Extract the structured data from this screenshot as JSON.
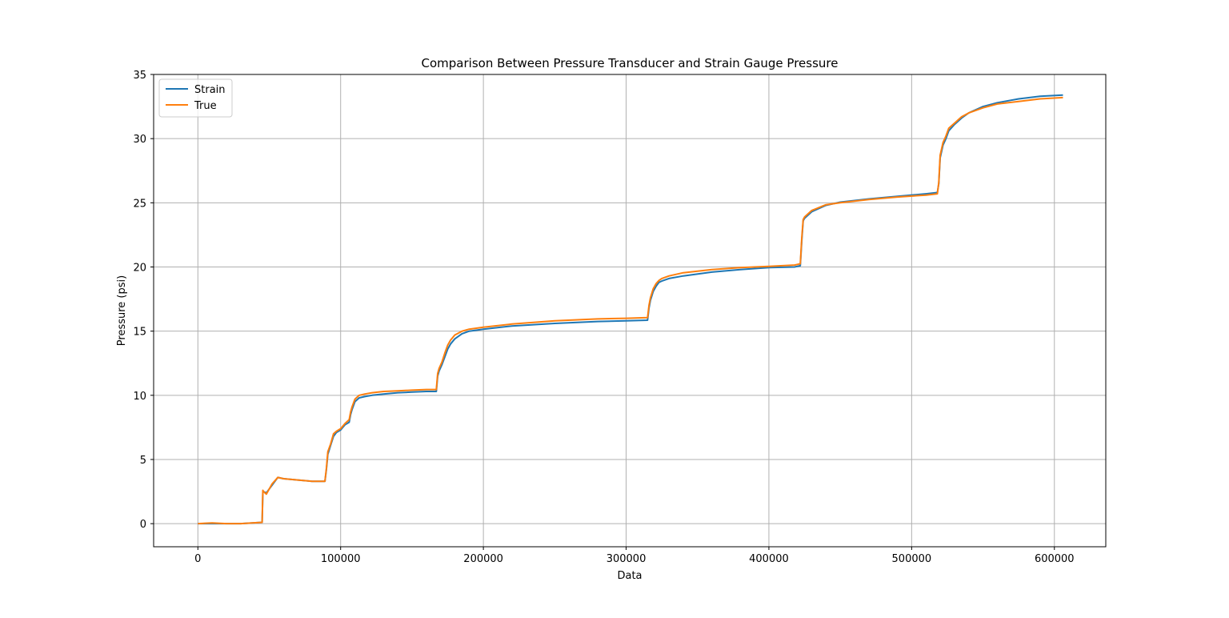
{
  "chart_data": {
    "type": "line",
    "title": "Comparison Between Pressure Transducer and Strain Gauge Pressure",
    "xlabel": "Data",
    "ylabel": "Pressure (psi)",
    "xlim": [
      -31000,
      636000
    ],
    "ylim": [
      -1.8,
      35
    ],
    "xticks": [
      0,
      100000,
      200000,
      300000,
      400000,
      500000,
      600000
    ],
    "xtick_labels": [
      "0",
      "100000",
      "200000",
      "300000",
      "400000",
      "500000",
      "600000"
    ],
    "yticks": [
      0,
      5,
      10,
      15,
      20,
      25,
      30,
      35
    ],
    "ytick_labels": [
      "0",
      "5",
      "10",
      "15",
      "20",
      "25",
      "30",
      "35"
    ],
    "grid": true,
    "legend_position": "top-left",
    "series": [
      {
        "name": "Strain",
        "color": "#1f77b4",
        "x": [
          0,
          10000,
          20000,
          30000,
          45000,
          45500,
          46000,
          48000,
          52000,
          56000,
          60000,
          70000,
          80000,
          89000,
          90000,
          91000,
          93000,
          95000,
          97000,
          100000,
          103000,
          106000,
          107000,
          108000,
          110000,
          113000,
          117000,
          122000,
          130000,
          140000,
          150000,
          160000,
          167000,
          168000,
          169000,
          171000,
          173000,
          175000,
          177000,
          180000,
          185000,
          190000,
          200000,
          220000,
          250000,
          280000,
          300000,
          315000,
          316000,
          317000,
          319000,
          321000,
          323000,
          325000,
          330000,
          340000,
          360000,
          380000,
          400000,
          418000,
          420000,
          422000,
          423000,
          424000,
          425000,
          430000,
          440000,
          450000,
          470000,
          490000,
          510000,
          518000,
          519000,
          520000,
          522000,
          524000,
          526000,
          530000,
          535000,
          540000,
          550000,
          560000,
          575000,
          590000,
          606000
        ],
        "y": [
          0.0,
          0.0,
          0.0,
          0.0,
          0.1,
          2.4,
          2.5,
          2.4,
          3.0,
          3.6,
          3.5,
          3.4,
          3.3,
          3.3,
          4.2,
          5.4,
          6.1,
          6.8,
          7.1,
          7.3,
          7.7,
          7.9,
          8.5,
          8.9,
          9.5,
          9.8,
          9.9,
          10.0,
          10.1,
          10.2,
          10.25,
          10.3,
          10.3,
          11.5,
          11.9,
          12.4,
          13.0,
          13.6,
          14.0,
          14.4,
          14.8,
          15.0,
          15.15,
          15.4,
          15.6,
          15.75,
          15.8,
          15.85,
          16.8,
          17.4,
          18.1,
          18.5,
          18.8,
          18.9,
          19.1,
          19.3,
          19.6,
          19.8,
          19.95,
          20.0,
          20.05,
          20.1,
          22.0,
          23.6,
          23.8,
          24.3,
          24.8,
          25.05,
          25.3,
          25.5,
          25.7,
          25.8,
          26.5,
          28.5,
          29.5,
          30.0,
          30.6,
          31.1,
          31.6,
          32.0,
          32.5,
          32.8,
          33.1,
          33.3,
          33.4
        ]
      },
      {
        "name": "True",
        "color": "#ff7f0e",
        "x": [
          0,
          10000,
          20000,
          30000,
          45000,
          45500,
          46000,
          48000,
          52000,
          56000,
          60000,
          70000,
          80000,
          89000,
          90000,
          91000,
          93000,
          95000,
          97000,
          100000,
          103000,
          106000,
          107000,
          108000,
          110000,
          113000,
          117000,
          122000,
          130000,
          140000,
          150000,
          160000,
          167000,
          168000,
          169000,
          171000,
          173000,
          175000,
          177000,
          180000,
          185000,
          190000,
          200000,
          220000,
          250000,
          280000,
          300000,
          315000,
          316000,
          317000,
          319000,
          321000,
          323000,
          325000,
          330000,
          340000,
          360000,
          380000,
          400000,
          418000,
          420000,
          422000,
          423000,
          424000,
          425000,
          430000,
          440000,
          450000,
          470000,
          490000,
          510000,
          518000,
          519000,
          520000,
          522000,
          524000,
          526000,
          530000,
          535000,
          540000,
          550000,
          560000,
          575000,
          590000,
          606000
        ],
        "y": [
          0.0,
          0.05,
          0.0,
          0.0,
          0.1,
          2.6,
          2.5,
          2.3,
          3.1,
          3.6,
          3.5,
          3.4,
          3.3,
          3.3,
          4.3,
          5.6,
          6.2,
          7.0,
          7.2,
          7.4,
          7.8,
          8.1,
          8.7,
          9.1,
          9.7,
          10.0,
          10.1,
          10.2,
          10.3,
          10.35,
          10.4,
          10.45,
          10.45,
          11.7,
          12.1,
          12.6,
          13.3,
          13.9,
          14.3,
          14.7,
          15.0,
          15.15,
          15.3,
          15.55,
          15.8,
          15.95,
          16.0,
          16.05,
          17.0,
          17.6,
          18.3,
          18.7,
          18.95,
          19.1,
          19.3,
          19.55,
          19.8,
          19.95,
          20.05,
          20.15,
          20.2,
          20.25,
          22.2,
          23.7,
          23.9,
          24.4,
          24.85,
          25.0,
          25.25,
          25.45,
          25.6,
          25.7,
          26.6,
          28.7,
          29.7,
          30.2,
          30.8,
          31.2,
          31.7,
          32.0,
          32.4,
          32.7,
          32.9,
          33.1,
          33.2
        ]
      }
    ]
  }
}
